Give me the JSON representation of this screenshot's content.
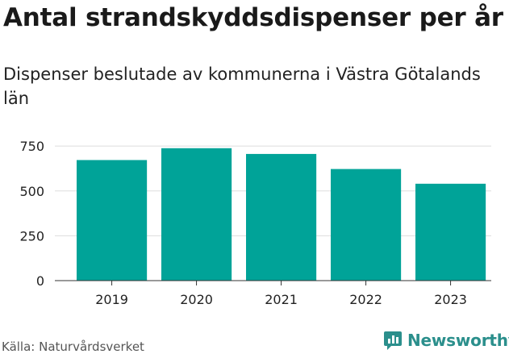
{
  "header": {
    "title": "Antal strandskyddsdispenser per år",
    "subtitle": "Dispenser beslutade av kommunerna i Västra Götalands län"
  },
  "footer": {
    "source": "Källa: Naturvårdsverket",
    "brand": "Newsworthy"
  },
  "colors": {
    "bar": "#00a398",
    "grid": "#dddddd",
    "brand": "#2b8f8c"
  },
  "chart_data": {
    "type": "bar",
    "title": "Antal strandskyddsdispenser per år",
    "subtitle": "Dispenser beslutade av kommunerna i Västra Götalands län",
    "categories": [
      "2019",
      "2020",
      "2021",
      "2022",
      "2023"
    ],
    "values": [
      672,
      738,
      706,
      622,
      540
    ],
    "xlabel": "",
    "ylabel": "",
    "ylim": [
      0,
      800
    ],
    "yticks": [
      0,
      250,
      500,
      750
    ],
    "grid": true,
    "legend": "none"
  }
}
